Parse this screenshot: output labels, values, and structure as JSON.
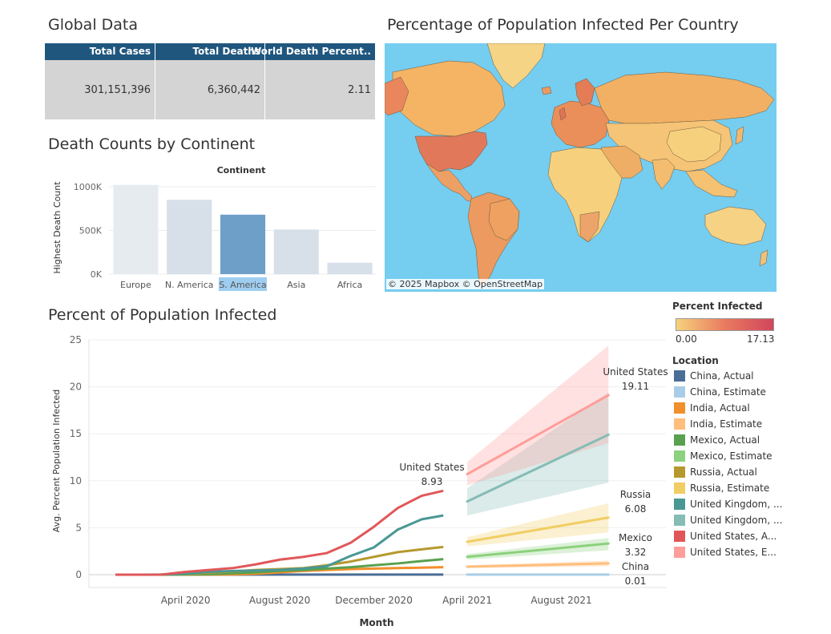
{
  "titles": {
    "global": "Global Data",
    "continent": "Death Counts by Continent",
    "map": "Percentage of Population Infected Per Country",
    "infected": "Percent of Population Infected"
  },
  "global_table": {
    "headers": [
      "Total Cases",
      "Total Deaths",
      "World Death Percent.."
    ],
    "values": [
      "301,151,396",
      "6,360,442",
      "2.11"
    ]
  },
  "map": {
    "attribution": "© 2025 Mapbox © OpenStreetMap",
    "legend_title": "Percent Infected",
    "legend_min": "0.00",
    "legend_max": "17.13",
    "ocean_color": "#75cdf0",
    "low_color": "#f6d27c",
    "high_color": "#d1455d"
  },
  "location_legend": {
    "title": "Location",
    "items": [
      {
        "label": "China, Actual",
        "color": "#4a6e96"
      },
      {
        "label": "China, Estimate",
        "color": "#a9cde8"
      },
      {
        "label": "India, Actual",
        "color": "#f28e2b"
      },
      {
        "label": "India, Estimate",
        "color": "#ffbe7d"
      },
      {
        "label": "Mexico, Actual",
        "color": "#59a14f"
      },
      {
        "label": "Mexico, Estimate",
        "color": "#8cd17d"
      },
      {
        "label": "Russia, Actual",
        "color": "#b6992d"
      },
      {
        "label": "Russia, Estimate",
        "color": "#f1ce63"
      },
      {
        "label": "United Kingdom, ...",
        "color": "#499894"
      },
      {
        "label": "United Kingdom, ...",
        "color": "#86bcb6"
      },
      {
        "label": "United States, A...",
        "color": "#e15759"
      },
      {
        "label": "United States, E...",
        "color": "#ff9d9a"
      }
    ]
  },
  "chart_data": [
    {
      "type": "bar",
      "title": "",
      "header": "Continent",
      "ylabel": "Highest Death Count",
      "categories": [
        "Europe",
        "N. America",
        "S. America",
        "Asia",
        "Africa"
      ],
      "values": [
        1020000,
        850000,
        680000,
        510000,
        130000
      ],
      "ylim": [
        0,
        1100000
      ],
      "yticks": [
        0,
        500000,
        1000000
      ],
      "ytick_labels": [
        "0K",
        "500K",
        "1000K"
      ],
      "highlighted": "S. America",
      "colors": {
        "bar": "#d7dfe9",
        "highlight": "#6d9fc8",
        "highlight_label_bg": "#9fcdf0"
      }
    },
    {
      "type": "line",
      "xlabel": "Month",
      "ylabel": "Avg. Percent Population Infected",
      "ylim": [
        0,
        25
      ],
      "yticks": [
        0,
        5,
        10,
        15,
        20,
        25
      ],
      "xticks": [
        {
          "date": "2020-04-01",
          "label": "April 2020"
        },
        {
          "date": "2020-08-01",
          "label": "August 2020"
        },
        {
          "date": "2020-12-01",
          "label": "December 2020"
        },
        {
          "date": "2021-04-01",
          "label": "April 2021"
        },
        {
          "date": "2021-08-01",
          "label": "August 2021"
        }
      ],
      "xlim": [
        "2020-01-01",
        "2021-12-01"
      ],
      "actual_months": [
        "2020-01",
        "2020-02",
        "2020-03",
        "2020-04",
        "2020-05",
        "2020-06",
        "2020-07",
        "2020-08",
        "2020-09",
        "2020-10",
        "2020-11",
        "2020-12",
        "2021-01",
        "2021-02",
        "2021-03"
      ],
      "series_actual": [
        {
          "name": "United States, Actual",
          "color": "#e15759",
          "values": [
            0,
            0,
            0.01,
            0.3,
            0.5,
            0.7,
            1.1,
            1.6,
            1.9,
            2.3,
            3.4,
            5.1,
            7.1,
            8.4,
            8.93
          ]
        },
        {
          "name": "United Kingdom, Actual",
          "color": "#499894",
          "values": [
            0,
            0,
            0.01,
            0.1,
            0.3,
            0.4,
            0.45,
            0.5,
            0.65,
            0.9,
            2.0,
            2.9,
            4.8,
            5.9,
            6.3
          ]
        },
        {
          "name": "Russia, Actual",
          "color": "#b6992d",
          "values": [
            0,
            0,
            0,
            0.05,
            0.2,
            0.35,
            0.5,
            0.6,
            0.7,
            1.0,
            1.4,
            1.9,
            2.4,
            2.7,
            2.95
          ]
        },
        {
          "name": "Mexico, Actual",
          "color": "#59a14f",
          "values": [
            0,
            0,
            0,
            0.01,
            0.05,
            0.15,
            0.25,
            0.4,
            0.5,
            0.65,
            0.8,
            1.0,
            1.2,
            1.45,
            1.65
          ]
        },
        {
          "name": "India, Actual",
          "color": "#f28e2b",
          "values": [
            0,
            0,
            0,
            0,
            0.01,
            0.03,
            0.1,
            0.25,
            0.4,
            0.5,
            0.6,
            0.65,
            0.7,
            0.75,
            0.8
          ]
        },
        {
          "name": "China, Actual",
          "color": "#4a6e96",
          "values": [
            0,
            0,
            0.01,
            0.01,
            0.01,
            0.01,
            0.01,
            0.01,
            0.01,
            0.01,
            0.01,
            0.01,
            0.01,
            0.01,
            0.01
          ]
        }
      ],
      "series_estimate": [
        {
          "name": "United States, Estimate",
          "color": "#ff9d9a",
          "from": [
            "2021-04",
            10.7
          ],
          "to": [
            "2021-10",
            19.11
          ],
          "band_from": [
            9.5,
            12.0
          ],
          "band_to": [
            14.0,
            24.4
          ]
        },
        {
          "name": "United Kingdom, Estimate",
          "color": "#86bcb6",
          "from": [
            "2021-04",
            7.8
          ],
          "to": [
            "2021-10",
            14.9
          ],
          "band_from": [
            6.3,
            9.2
          ],
          "band_to": [
            9.8,
            19.4
          ]
        },
        {
          "name": "Russia, Estimate",
          "color": "#f1ce63",
          "from": [
            "2021-04",
            3.5
          ],
          "to": [
            "2021-10",
            6.08
          ],
          "band_from": [
            3.0,
            4.0
          ],
          "band_to": [
            4.5,
            7.6
          ]
        },
        {
          "name": "Mexico, Estimate",
          "color": "#8cd17d",
          "from": [
            "2021-04",
            1.9
          ],
          "to": [
            "2021-10",
            3.32
          ],
          "band_from": [
            1.6,
            2.2
          ],
          "band_to": [
            2.6,
            3.9
          ]
        },
        {
          "name": "India, Estimate",
          "color": "#ffbe7d",
          "from": [
            "2021-04",
            0.85
          ],
          "to": [
            "2021-10",
            1.2
          ],
          "band_from": [
            0.7,
            1.0
          ],
          "band_to": [
            0.9,
            1.5
          ]
        },
        {
          "name": "China, Estimate",
          "color": "#a9cde8",
          "from": [
            "2021-04",
            0.01
          ],
          "to": [
            "2021-10",
            0.01
          ],
          "band_from": [
            0,
            0.05
          ],
          "band_to": [
            0,
            0.05
          ]
        }
      ],
      "annotations": [
        {
          "name": "United States",
          "value": "8.93",
          "date": "2021-03",
          "y": 8.93
        },
        {
          "name": "United States",
          "value": "19.11",
          "date": "2021-10",
          "y": 19.11
        },
        {
          "name": "Russia",
          "value": "6.08",
          "date": "2021-10",
          "y": 6.08
        },
        {
          "name": "Mexico",
          "value": "3.32",
          "date": "2021-10",
          "y": 3.32
        },
        {
          "name": "China",
          "value": "0.01",
          "date": "2021-10",
          "y": 0.01
        }
      ]
    }
  ]
}
